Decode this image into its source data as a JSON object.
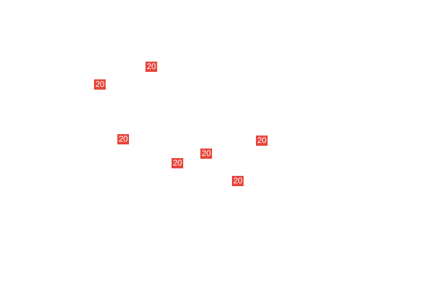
{
  "marker_color": "#e8453c",
  "markers": [
    {
      "label": "20"
    },
    {
      "label": "20"
    },
    {
      "label": "20"
    },
    {
      "label": "20"
    },
    {
      "label": "20"
    },
    {
      "label": "20"
    },
    {
      "label": "20"
    }
  ]
}
